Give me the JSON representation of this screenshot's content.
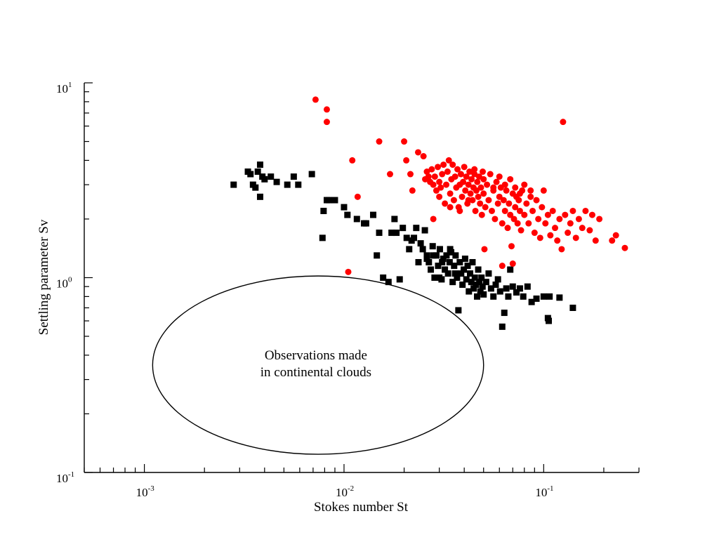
{
  "chart_data": {
    "type": "scatter",
    "title": "",
    "xlabel": "Stokes number St",
    "ylabel": "Settling parameter Sv",
    "xscale": "log",
    "yscale": "log",
    "xlim": [
      0.0005,
      0.3
    ],
    "ylim": [
      0.1,
      10
    ],
    "grid": false,
    "x_tick_labels": [
      {
        "value": 0.001,
        "base": "10",
        "exp": "-3"
      },
      {
        "value": 0.01,
        "base": "10",
        "exp": "-2"
      },
      {
        "value": 0.1,
        "base": "10",
        "exp": "-1"
      }
    ],
    "y_tick_labels": [
      {
        "value": 0.1,
        "base": "10",
        "exp": "-1"
      },
      {
        "value": 1,
        "base": "10",
        "exp": "0"
      },
      {
        "value": 10,
        "base": "10",
        "exp": "1"
      }
    ],
    "annotation": {
      "lines": [
        "Observations made",
        "in continental clouds"
      ],
      "ellipse_center": [
        0.007,
        0.35
      ],
      "ellipse_x_extent": [
        0.0011,
        0.05
      ],
      "ellipse_y_extent": [
        0.124,
        1.02
      ]
    },
    "series": [
      {
        "marker": "square",
        "color": "#000000",
        "points": [
          [
            0.0028,
            3.0
          ],
          [
            0.0033,
            3.5
          ],
          [
            0.0034,
            3.4
          ],
          [
            0.0035,
            3.0
          ],
          [
            0.0036,
            2.9
          ],
          [
            0.0037,
            3.5
          ],
          [
            0.0038,
            3.8
          ],
          [
            0.0038,
            2.6
          ],
          [
            0.0039,
            3.3
          ],
          [
            0.004,
            3.2
          ],
          [
            0.0043,
            3.3
          ],
          [
            0.0046,
            3.1
          ],
          [
            0.0052,
            3.0
          ],
          [
            0.0056,
            3.3
          ],
          [
            0.0059,
            3.0
          ],
          [
            0.0069,
            3.4
          ],
          [
            0.0078,
            1.6
          ],
          [
            0.0079,
            2.2
          ],
          [
            0.0082,
            2.5
          ],
          [
            0.0084,
            2.5
          ],
          [
            0.009,
            2.5
          ],
          [
            0.01,
            2.3
          ],
          [
            0.0104,
            2.1
          ],
          [
            0.0116,
            2.0
          ],
          [
            0.0126,
            1.9
          ],
          [
            0.0129,
            1.9
          ],
          [
            0.014,
            2.1
          ],
          [
            0.0146,
            1.3
          ],
          [
            0.015,
            1.7
          ],
          [
            0.0157,
            1.0
          ],
          [
            0.0167,
            0.95
          ],
          [
            0.0173,
            1.7
          ],
          [
            0.0179,
            2.0
          ],
          [
            0.0183,
            1.7
          ],
          [
            0.019,
            0.98
          ],
          [
            0.0197,
            1.8
          ],
          [
            0.0206,
            1.6
          ],
          [
            0.0212,
            1.4
          ],
          [
            0.0218,
            1.55
          ],
          [
            0.0224,
            1.6
          ],
          [
            0.023,
            1.8
          ],
          [
            0.0236,
            1.2
          ],
          [
            0.0242,
            1.5
          ],
          [
            0.0248,
            1.4
          ],
          [
            0.0254,
            1.75
          ],
          [
            0.026,
            1.3
          ],
          [
            0.0266,
            1.2
          ],
          [
            0.0272,
            1.1
          ],
          [
            0.0278,
            1.45
          ],
          [
            0.0284,
            1.0
          ],
          [
            0.029,
            1.3
          ],
          [
            0.0296,
            1.15
          ],
          [
            0.0302,
            1.4
          ],
          [
            0.0308,
            0.98
          ],
          [
            0.0314,
            1.25
          ],
          [
            0.032,
            1.1
          ],
          [
            0.0326,
            1.3
          ],
          [
            0.0332,
            1.05
          ],
          [
            0.0338,
            1.2
          ],
          [
            0.0344,
            1.35
          ],
          [
            0.035,
            0.95
          ],
          [
            0.0356,
            1.15
          ],
          [
            0.0362,
            1.3
          ],
          [
            0.0368,
            1.0
          ],
          [
            0.0374,
            0.68
          ],
          [
            0.038,
            1.2
          ],
          [
            0.0386,
            1.05
          ],
          [
            0.0392,
            0.92
          ],
          [
            0.0398,
            1.1
          ],
          [
            0.0404,
            1.25
          ],
          [
            0.041,
            0.98
          ],
          [
            0.0416,
            1.15
          ],
          [
            0.0422,
            0.85
          ],
          [
            0.0428,
            1.05
          ],
          [
            0.0434,
            0.95
          ],
          [
            0.044,
            1.2
          ],
          [
            0.0446,
            0.88
          ],
          [
            0.0452,
            1.0
          ],
          [
            0.0458,
            0.92
          ],
          [
            0.0464,
            0.8
          ],
          [
            0.047,
            1.1
          ],
          [
            0.0476,
            0.95
          ],
          [
            0.0482,
            0.85
          ],
          [
            0.0488,
            1.0
          ],
          [
            0.0494,
            0.9
          ],
          [
            0.05,
            0.82
          ],
          [
            0.0515,
            0.95
          ],
          [
            0.053,
            1.05
          ],
          [
            0.0545,
            0.88
          ],
          [
            0.056,
            0.8
          ],
          [
            0.0575,
            0.92
          ],
          [
            0.059,
            0.98
          ],
          [
            0.0605,
            0.85
          ],
          [
            0.062,
            0.56
          ],
          [
            0.0635,
            0.66
          ],
          [
            0.065,
            0.88
          ],
          [
            0.0665,
            0.8
          ],
          [
            0.068,
            1.1
          ],
          [
            0.07,
            0.9
          ],
          [
            0.073,
            0.84
          ],
          [
            0.076,
            0.88
          ],
          [
            0.079,
            0.8
          ],
          [
            0.083,
            0.9
          ],
          [
            0.087,
            0.75
          ],
          [
            0.092,
            0.78
          ],
          [
            0.1,
            0.8
          ],
          [
            0.105,
            0.62
          ],
          [
            0.106,
            0.6
          ],
          [
            0.107,
            0.8
          ],
          [
            0.12,
            0.79
          ],
          [
            0.14,
            0.7
          ],
          [
            0.03,
            1.0
          ],
          [
            0.034,
            1.4
          ],
          [
            0.028,
            1.3
          ],
          [
            0.031,
            1.2
          ],
          [
            0.036,
            1.05
          ],
          [
            0.026,
            1.25
          ]
        ]
      },
      {
        "marker": "circle",
        "color": "#ff0000",
        "points": [
          [
            0.0072,
            8.2
          ],
          [
            0.0082,
            7.3
          ],
          [
            0.0082,
            6.3
          ],
          [
            0.0105,
            1.07
          ],
          [
            0.011,
            4.0
          ],
          [
            0.0117,
            2.6
          ],
          [
            0.015,
            5.0
          ],
          [
            0.017,
            3.4
          ],
          [
            0.02,
            5.0
          ],
          [
            0.0205,
            4.0
          ],
          [
            0.0215,
            3.4
          ],
          [
            0.022,
            2.8
          ],
          [
            0.0235,
            4.4
          ],
          [
            0.025,
            4.2
          ],
          [
            0.0255,
            3.2
          ],
          [
            0.026,
            3.5
          ],
          [
            0.0265,
            3.3
          ],
          [
            0.027,
            3.1
          ],
          [
            0.0275,
            3.6
          ],
          [
            0.028,
            3.0
          ],
          [
            0.0285,
            3.3
          ],
          [
            0.029,
            2.8
          ],
          [
            0.0295,
            3.7
          ],
          [
            0.03,
            3.1
          ],
          [
            0.0305,
            2.9
          ],
          [
            0.031,
            3.4
          ],
          [
            0.0315,
            3.8
          ],
          [
            0.032,
            2.4
          ],
          [
            0.0325,
            3.0
          ],
          [
            0.033,
            3.5
          ],
          [
            0.0335,
            4.0
          ],
          [
            0.034,
            2.7
          ],
          [
            0.0345,
            3.2
          ],
          [
            0.035,
            3.8
          ],
          [
            0.0355,
            2.5
          ],
          [
            0.036,
            3.3
          ],
          [
            0.0365,
            2.9
          ],
          [
            0.037,
            3.6
          ],
          [
            0.0375,
            2.3
          ],
          [
            0.038,
            3.0
          ],
          [
            0.0385,
            3.4
          ],
          [
            0.039,
            2.6
          ],
          [
            0.0395,
            3.1
          ],
          [
            0.04,
            3.7
          ],
          [
            0.0405,
            2.8
          ],
          [
            0.041,
            3.3
          ],
          [
            0.0415,
            2.4
          ],
          [
            0.042,
            3.0
          ],
          [
            0.0425,
            3.5
          ],
          [
            0.043,
            2.7
          ],
          [
            0.0435,
            3.2
          ],
          [
            0.044,
            2.5
          ],
          [
            0.0445,
            2.9
          ],
          [
            0.045,
            3.4
          ],
          [
            0.0455,
            2.2
          ],
          [
            0.046,
            2.8
          ],
          [
            0.0465,
            3.1
          ],
          [
            0.047,
            2.6
          ],
          [
            0.0475,
            3.3
          ],
          [
            0.048,
            2.4
          ],
          [
            0.0485,
            2.9
          ],
          [
            0.049,
            2.1
          ],
          [
            0.0495,
            3.5
          ],
          [
            0.05,
            2.7
          ],
          [
            0.0505,
            1.4
          ],
          [
            0.051,
            2.3
          ],
          [
            0.052,
            3.0
          ],
          [
            0.053,
            2.5
          ],
          [
            0.054,
            3.4
          ],
          [
            0.055,
            2.2
          ],
          [
            0.056,
            2.8
          ],
          [
            0.057,
            2.0
          ],
          [
            0.058,
            3.1
          ],
          [
            0.059,
            2.4
          ],
          [
            0.06,
            2.6
          ],
          [
            0.061,
            2.9
          ],
          [
            0.062,
            1.9
          ],
          [
            0.063,
            2.5
          ],
          [
            0.064,
            2.2
          ],
          [
            0.065,
            2.8
          ],
          [
            0.066,
            1.8
          ],
          [
            0.067,
            2.4
          ],
          [
            0.068,
            2.1
          ],
          [
            0.069,
            1.45
          ],
          [
            0.07,
            2.7
          ],
          [
            0.071,
            2.0
          ],
          [
            0.072,
            2.3
          ],
          [
            0.073,
            2.6
          ],
          [
            0.074,
            1.9
          ],
          [
            0.075,
            2.5
          ],
          [
            0.076,
            2.2
          ],
          [
            0.077,
            1.75
          ],
          [
            0.078,
            2.8
          ],
          [
            0.08,
            2.1
          ],
          [
            0.082,
            2.4
          ],
          [
            0.084,
            1.9
          ],
          [
            0.086,
            2.6
          ],
          [
            0.088,
            2.2
          ],
          [
            0.09,
            1.7
          ],
          [
            0.092,
            2.5
          ],
          [
            0.094,
            2.0
          ],
          [
            0.096,
            1.6
          ],
          [
            0.098,
            2.3
          ],
          [
            0.1,
            2.8
          ],
          [
            0.102,
            1.9
          ],
          [
            0.105,
            2.1
          ],
          [
            0.108,
            1.65
          ],
          [
            0.111,
            2.2
          ],
          [
            0.114,
            1.8
          ],
          [
            0.117,
            1.55
          ],
          [
            0.12,
            2.0
          ],
          [
            0.123,
            1.4
          ],
          [
            0.125,
            6.3
          ],
          [
            0.128,
            2.1
          ],
          [
            0.132,
            1.7
          ],
          [
            0.136,
            1.9
          ],
          [
            0.14,
            2.2
          ],
          [
            0.145,
            1.6
          ],
          [
            0.15,
            2.0
          ],
          [
            0.156,
            1.8
          ],
          [
            0.162,
            2.2
          ],
          [
            0.17,
            1.75
          ],
          [
            0.175,
            2.1
          ],
          [
            0.182,
            1.55
          ],
          [
            0.19,
            2.0
          ],
          [
            0.22,
            1.55
          ],
          [
            0.23,
            1.65
          ],
          [
            0.255,
            1.42
          ],
          [
            0.062,
            1.15
          ],
          [
            0.07,
            1.18
          ],
          [
            0.056,
            2.9
          ],
          [
            0.06,
            3.3
          ],
          [
            0.064,
            3.0
          ],
          [
            0.068,
            3.2
          ],
          [
            0.072,
            2.9
          ],
          [
            0.076,
            2.7
          ],
          [
            0.08,
            3.0
          ],
          [
            0.086,
            2.8
          ],
          [
            0.05,
            3.2
          ],
          [
            0.045,
            3.6
          ],
          [
            0.042,
            2.5
          ],
          [
            0.038,
            2.2
          ],
          [
            0.034,
            2.3
          ],
          [
            0.03,
            2.6
          ],
          [
            0.028,
            2.0
          ]
        ]
      }
    ]
  }
}
